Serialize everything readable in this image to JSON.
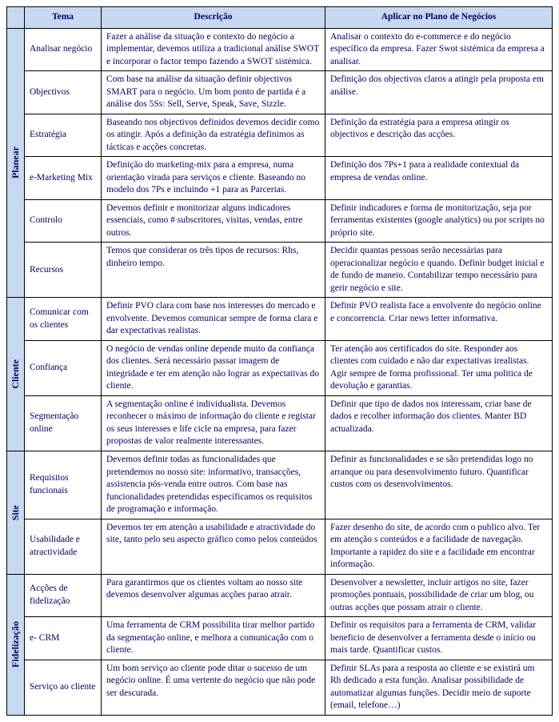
{
  "headers": {
    "tema": "Tema",
    "descricao": "Descrição",
    "aplicar": "Aplicar no Plano de Negócios"
  },
  "sections": [
    {
      "name": "Planear",
      "rows": [
        {
          "tema": "Analisar negócio",
          "desc": "Fazer a análise da situação e contexto do negócio a implementar, devemos utiliza a tradicional análise SWOT e incorporar o factor tempo fazendo a SWOT sistémica.",
          "aplic": "Analisar o contexto do e-commerce e do negócio específico da empresa. Fazer Swot sistémica da empresa a analisar."
        },
        {
          "tema": "Objectivos",
          "desc": "Com base na análise da situação definir objectivos SMART para o negócio. Um bom ponto de partida é a análise dos 5Ss: Sell, Serve, Speak, Save, Sizzle.",
          "aplic": "Definição dos objectivos claros a atingir pela proposta em análise."
        },
        {
          "tema": "Estratégia",
          "desc": "Baseando nos objectivos definidos devemos decidir como os atingir.  Após a definição da estratégia definimos as tácticas e acções concretas.",
          "aplic": "Definição da estratégia para a empresa atingir os objectivos e descrição das acções."
        },
        {
          "tema": "e-Marketing Mix",
          "desc": "Definição do marketing-mix para a empresa, numa orientação virada para serviços e cliente. Baseando no modelo dos 7Ps e incluindo +1 para as Parcerias.",
          "aplic": "Definição dos 7Ps+1 para a realidade contextual da empresa de vendas online."
        },
        {
          "tema": "Controlo",
          "desc": "Devemos definir e monitorizar alguns indicadores essenciais, como # subscritores, visitas, vendas, entre outros.",
          "aplic": "Definir indicadores e forma de monitorização, seja por ferramentas existentes (google analytics) ou por scripts no próprio site."
        },
        {
          "tema": "Recursos",
          "desc": "Temos que considerar os três tipos de recursos: Rhs, dinheiro  tempo.",
          "aplic": "Decidir quantas pessoas serão necessárias para operacionalizar negócio e quando. Definir budget inicial e de fundo de maneio. Contabilizar tempo necessário para gerir negócio e site."
        }
      ]
    },
    {
      "name": "Cliente",
      "rows": [
        {
          "tema": "Comunicar com os clientes",
          "desc": "Definir PVO clara com base nos interesses do mercado e envolvente. Devemos comunicar sempre de forma clara e dar expectativas realistas.",
          "aplic": "Definir PVO realista face a envolvente do negócio online e concorrencia. Criar news letter informativa."
        },
        {
          "tema": "Confiança",
          "desc": "O negócio de vendas online depende muito da confiança dos clientes. Será necessário passar imagem de integridade e ter em atenção não lograr as expectativas do cliente.",
          "aplic": "Ter atenção aos certificados do site. Responder aos clientes com cuidado e não dar expectativas irealistas. Agir sempre de forma profissional. Ter uma politica de devolução e garantias."
        },
        {
          "tema": "Segmentação online",
          "desc": "A segmentação online é individualista. Devemos reconhecer o máximo de informação do cliente e registar os seus interesses e life cicle na empresa, para fazer propostas de valor realmente interessantes.",
          "aplic": "Definir que tipo de dados nos interessam, criar base de dados e recolher informação dos clientes. Manter BD actualizada."
        }
      ]
    },
    {
      "name": "Site",
      "rows": [
        {
          "tema": "Requisitos funcionais",
          "desc": "Devemos definir todas as funcionalidades que pretendemos no nosso site: informativo, transacções, assistencia pós-venda entre outros. Com base nas funcionalidades pretendidas específicamos os requisitos de programação e informação.",
          "aplic": "Definir as funcionalidades e se são pretendidas logo no arranque ou para desenvolvimento futuro. Quantificar custos com os desenvolvimentos."
        },
        {
          "tema": "Usabilidade e atractividade",
          "desc": "Devemos ter em atenção a usabilidade e atractividade do site, tanto pelo seu aspecto gráfico como pelos conteúdos",
          "aplic": "Fazer desenho do site, de acordo com o publico alvo. Ter em atenção s conteúdos e a facilidade de navegação. Importante a rapidez do site e a facilidade em encontrar informação."
        }
      ]
    },
    {
      "name": "Fidelização",
      "rows": [
        {
          "tema": "Acções de fidelização",
          "desc": "Para garantirmos que os clientes voltam ao nosso site devemos desenvolver algumas acções parao  atrair.",
          "aplic": "Desenvolver a newsletter, incluir artigos no site, fazer promoções pontuais, possibilidade de criar um blog, ou outras acções que possam atrair o cliente."
        },
        {
          "tema": "e- CRM",
          "desc": "Uma ferramenta de CRM possibilita tirar melhor partido da segmentação online, e melhora a comunicação com o cliente.",
          "aplic": "Definir os requisitos para a ferramenta de CRM, validar beneficio de desenvolver a ferramenta desde  o início ou mais tarde. Quantificar custos."
        },
        {
          "tema": "Serviço ao cliente",
          "desc": "Um bom serviço ao cliente pode ditar o sucesso de um negócio online. É uma vertente do negócio que não pode ser descurada.",
          "aplic": "Definir SLAs para a resposta ao cliente e se existirá um Rh dedicado a esta função. Analisar possibilidade de automatizar algumas funções. Decidir meio de suporte (email, telefone…)"
        }
      ]
    }
  ]
}
